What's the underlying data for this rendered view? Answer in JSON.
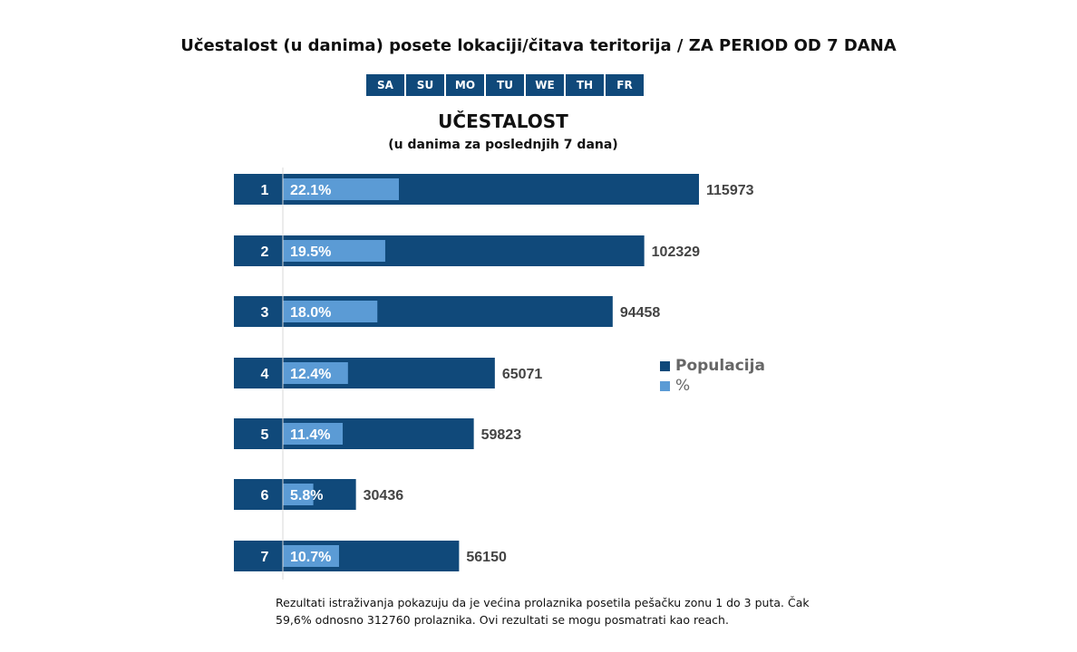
{
  "title": "Učestalost (u danima) posete lokaciji/čitava teritorija / ZA PERIOD OD 7 DANA",
  "days": [
    "SA",
    "SU",
    "MO",
    "TU",
    "WE",
    "TH",
    "FR"
  ],
  "colors": {
    "population": "#10497a",
    "percent": "#5b9bd5"
  },
  "chart_data": {
    "type": "bar",
    "orientation": "horizontal",
    "title": "UČESTALOST",
    "subtitle": "(u danima za poslednjih 7 dana)",
    "categories": [
      "1",
      "2",
      "3",
      "4",
      "5",
      "6",
      "7"
    ],
    "series": [
      {
        "name": "Populacija",
        "values": [
          115973,
          102329,
          94458,
          65071,
          59823,
          30436,
          56150
        ],
        "labels": [
          "115973",
          "102329",
          "94458",
          "65071",
          "59823",
          "30436",
          "56150"
        ]
      },
      {
        "name": "%",
        "values": [
          22.1,
          19.5,
          18.0,
          12.4,
          11.4,
          5.8,
          10.7
        ],
        "labels": [
          "22.1%",
          "19.5%",
          "18.0%",
          "12.4%",
          "11.4%",
          "5.8%",
          "10.7%"
        ]
      }
    ],
    "legend": "right"
  },
  "note": "Rezultati istraživanja pokazuju da je većina prolaznika posetila pešačku zonu 1 do 3 puta. Čak 59,6% odnosno 312760 prolaznika. Ovi rezultati se mogu posmatrati kao reach."
}
